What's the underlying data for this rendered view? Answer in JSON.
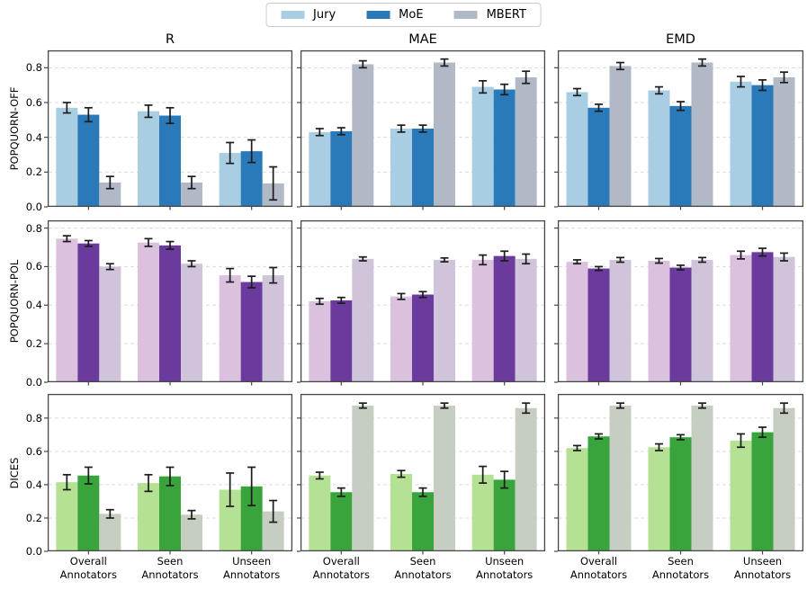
{
  "legend": {
    "items": [
      "Jury",
      "MoE",
      "MBERT"
    ]
  },
  "chart_data": {
    "type": "bar",
    "columns": [
      "R",
      "MAE",
      "EMD"
    ],
    "rows": [
      "POPQUORN-OFF",
      "POPQUORN-POL",
      "DICES"
    ],
    "categories": [
      [
        "Overall",
        "Annotators"
      ],
      [
        "Seen",
        "Annotators"
      ],
      [
        "Unseen",
        "Annotators"
      ]
    ],
    "series_names": [
      "Jury",
      "MoE",
      "MBERT"
    ],
    "grid": "dashed horizontal at each y tick",
    "legend_position": "top center, framed",
    "yticks": [
      {
        "label": "0.0",
        "value": 0.0
      },
      {
        "label": "0.2",
        "value": 0.2
      },
      {
        "label": "0.4",
        "value": 0.4
      },
      {
        "label": "0.6",
        "value": 0.6
      },
      {
        "label": "0.8",
        "value": 0.8
      }
    ],
    "row_styles": [
      {
        "colors": [
          "#a9cee3",
          "#2a79b8",
          "#b2b9c6"
        ],
        "ylim": [
          0,
          0.9
        ]
      },
      {
        "colors": [
          "#dcc1de",
          "#6a3b9c",
          "#cfc4da"
        ],
        "ylim": [
          0,
          0.84
        ]
      },
      {
        "colors": [
          "#b5e194",
          "#3aa43c",
          "#c6cec2"
        ],
        "ylim": [
          0,
          0.945
        ]
      }
    ],
    "error_bar_color": "#1c1c1c",
    "subplots": [
      {
        "row": "POPQUORN-OFF",
        "col": "R",
        "series": [
          {
            "name": "Jury",
            "values": [
              0.57,
              0.55,
              0.31
            ],
            "errors": [
              0.03,
              0.035,
              0.06
            ]
          },
          {
            "name": "MoE",
            "values": [
              0.53,
              0.525,
              0.32
            ],
            "errors": [
              0.04,
              0.045,
              0.065
            ]
          },
          {
            "name": "MBERT",
            "values": [
              0.14,
              0.14,
              0.135
            ],
            "errors": [
              0.035,
              0.035,
              0.095
            ]
          }
        ]
      },
      {
        "row": "POPQUORN-OFF",
        "col": "MAE",
        "series": [
          {
            "name": "Jury",
            "values": [
              0.43,
              0.45,
              0.69
            ],
            "errors": [
              0.02,
              0.02,
              0.035
            ]
          },
          {
            "name": "MoE",
            "values": [
              0.435,
              0.45,
              0.675
            ],
            "errors": [
              0.02,
              0.02,
              0.03
            ]
          },
          {
            "name": "MBERT",
            "values": [
              0.82,
              0.83,
              0.745
            ],
            "errors": [
              0.02,
              0.02,
              0.035
            ]
          }
        ]
      },
      {
        "row": "POPQUORN-OFF",
        "col": "EMD",
        "series": [
          {
            "name": "Jury",
            "values": [
              0.66,
              0.67,
              0.72
            ],
            "errors": [
              0.02,
              0.02,
              0.03
            ]
          },
          {
            "name": "MoE",
            "values": [
              0.57,
              0.58,
              0.7
            ],
            "errors": [
              0.02,
              0.025,
              0.03
            ]
          },
          {
            "name": "MBERT",
            "values": [
              0.81,
              0.83,
              0.745
            ],
            "errors": [
              0.02,
              0.02,
              0.03
            ]
          }
        ]
      },
      {
        "row": "POPQUORN-POL",
        "col": "R",
        "series": [
          {
            "name": "Jury",
            "values": [
              0.745,
              0.725,
              0.555
            ],
            "errors": [
              0.015,
              0.02,
              0.035
            ]
          },
          {
            "name": "MoE",
            "values": [
              0.72,
              0.71,
              0.52
            ],
            "errors": [
              0.015,
              0.02,
              0.03
            ]
          },
          {
            "name": "MBERT",
            "values": [
              0.6,
              0.615,
              0.555
            ],
            "errors": [
              0.015,
              0.015,
              0.04
            ]
          }
        ]
      },
      {
        "row": "POPQUORN-POL",
        "col": "MAE",
        "series": [
          {
            "name": "Jury",
            "values": [
              0.42,
              0.445,
              0.635
            ],
            "errors": [
              0.015,
              0.015,
              0.025
            ]
          },
          {
            "name": "MoE",
            "values": [
              0.425,
              0.455,
              0.655
            ],
            "errors": [
              0.015,
              0.015,
              0.025
            ]
          },
          {
            "name": "MBERT",
            "values": [
              0.64,
              0.635,
              0.64
            ],
            "errors": [
              0.01,
              0.01,
              0.025
            ]
          }
        ]
      },
      {
        "row": "POPQUORN-POL",
        "col": "EMD",
        "series": [
          {
            "name": "Jury",
            "values": [
              0.625,
              0.63,
              0.66
            ],
            "errors": [
              0.01,
              0.012,
              0.02
            ]
          },
          {
            "name": "MoE",
            "values": [
              0.59,
              0.595,
              0.675
            ],
            "errors": [
              0.01,
              0.012,
              0.02
            ]
          },
          {
            "name": "MBERT",
            "values": [
              0.635,
              0.635,
              0.65
            ],
            "errors": [
              0.012,
              0.012,
              0.02
            ]
          }
        ]
      },
      {
        "row": "DICES",
        "col": "R",
        "series": [
          {
            "name": "Jury",
            "values": [
              0.415,
              0.41,
              0.37
            ],
            "errors": [
              0.045,
              0.05,
              0.1
            ]
          },
          {
            "name": "MoE",
            "values": [
              0.455,
              0.45,
              0.39
            ],
            "errors": [
              0.05,
              0.055,
              0.115
            ]
          },
          {
            "name": "MBERT",
            "values": [
              0.225,
              0.22,
              0.24
            ],
            "errors": [
              0.025,
              0.025,
              0.065
            ]
          }
        ]
      },
      {
        "row": "DICES",
        "col": "MAE",
        "series": [
          {
            "name": "Jury",
            "values": [
              0.455,
              0.465,
              0.46
            ],
            "errors": [
              0.02,
              0.02,
              0.05
            ]
          },
          {
            "name": "MoE",
            "values": [
              0.355,
              0.355,
              0.43
            ],
            "errors": [
              0.025,
              0.025,
              0.05
            ]
          },
          {
            "name": "MBERT",
            "values": [
              0.875,
              0.875,
              0.86
            ],
            "errors": [
              0.015,
              0.015,
              0.03
            ]
          }
        ]
      },
      {
        "row": "DICES",
        "col": "EMD",
        "series": [
          {
            "name": "Jury",
            "values": [
              0.62,
              0.625,
              0.665
            ],
            "errors": [
              0.015,
              0.02,
              0.04
            ]
          },
          {
            "name": "MoE",
            "values": [
              0.69,
              0.685,
              0.715
            ],
            "errors": [
              0.015,
              0.015,
              0.03
            ]
          },
          {
            "name": "MBERT",
            "values": [
              0.875,
              0.875,
              0.86
            ],
            "errors": [
              0.015,
              0.015,
              0.03
            ]
          }
        ]
      }
    ]
  }
}
